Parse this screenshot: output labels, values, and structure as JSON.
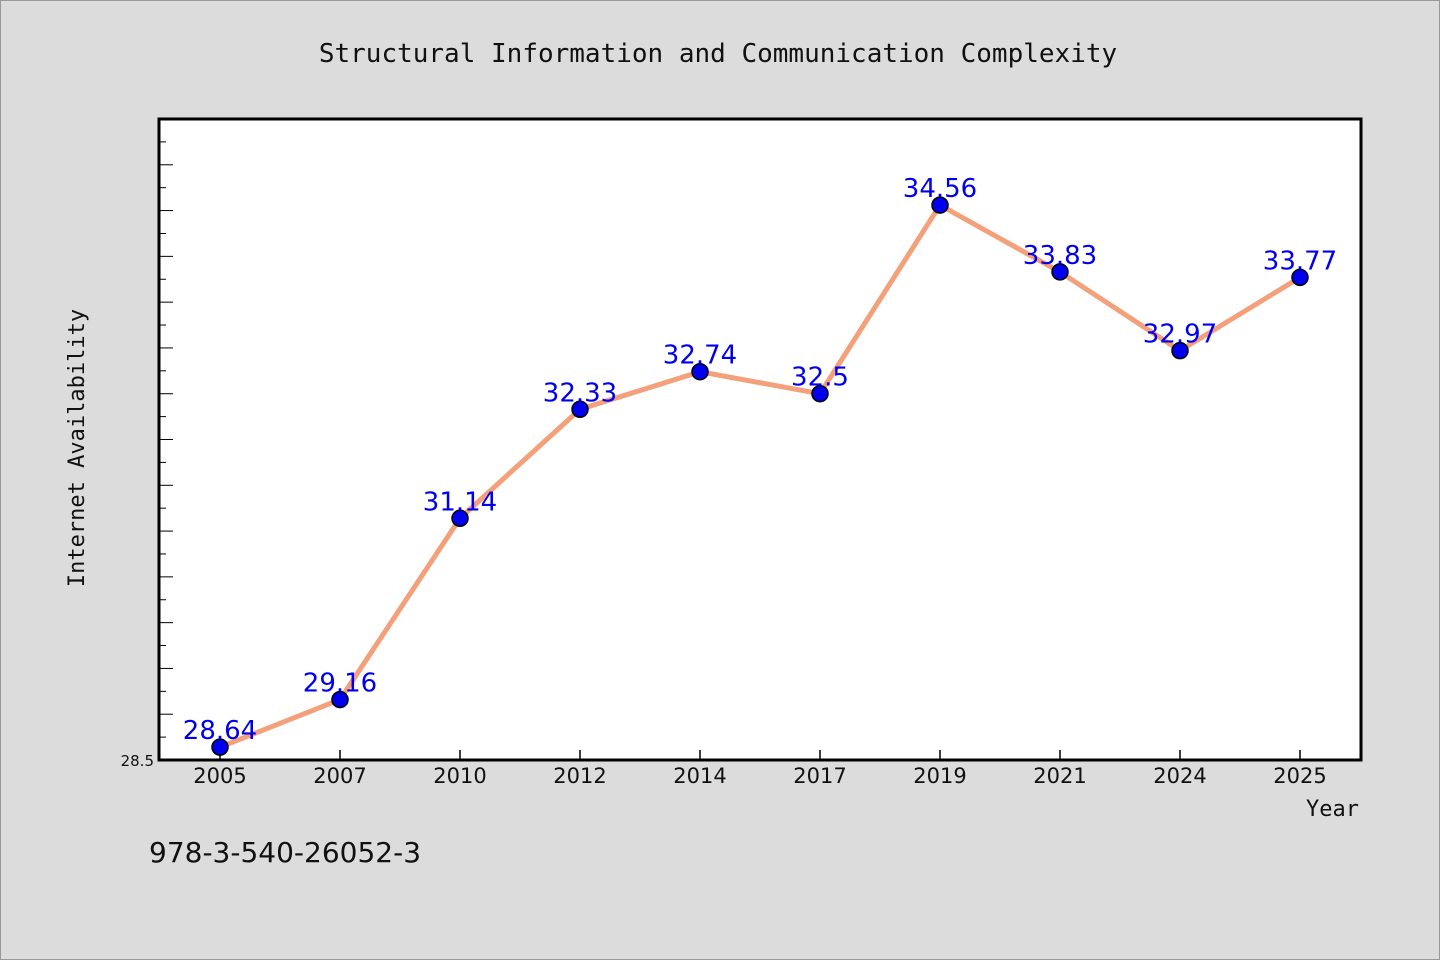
{
  "chart_data": {
    "type": "line",
    "title": "Structural Information and Communication Complexity",
    "xlabel": "Year",
    "ylabel": "Internet Availability",
    "categories": [
      "2005",
      "2007",
      "2010",
      "2012",
      "2014",
      "2017",
      "2019",
      "2021",
      "2024",
      "2025"
    ],
    "series": [
      {
        "values": [
          28.64,
          29.16,
          31.14,
          32.33,
          32.74,
          32.5,
          34.56,
          33.83,
          32.97,
          33.77
        ],
        "labels": [
          "28.64",
          "29.16",
          "31.14",
          "32.33",
          "32.74",
          "32.5",
          "34.56",
          "33.83",
          "32.97",
          "33.77"
        ]
      }
    ],
    "ylim": [
      28.5,
      35.5
    ],
    "yticks_labeled": [
      "28.5"
    ],
    "grid": false,
    "legend": "none",
    "colors": {
      "line": "#f4a07a",
      "marker": "#0000ee",
      "data_label": "#0000ee",
      "background": "#dcdcdc",
      "plot_background": "#ffffff"
    }
  },
  "footer": {
    "isbn": "978-3-540-26052-3"
  }
}
